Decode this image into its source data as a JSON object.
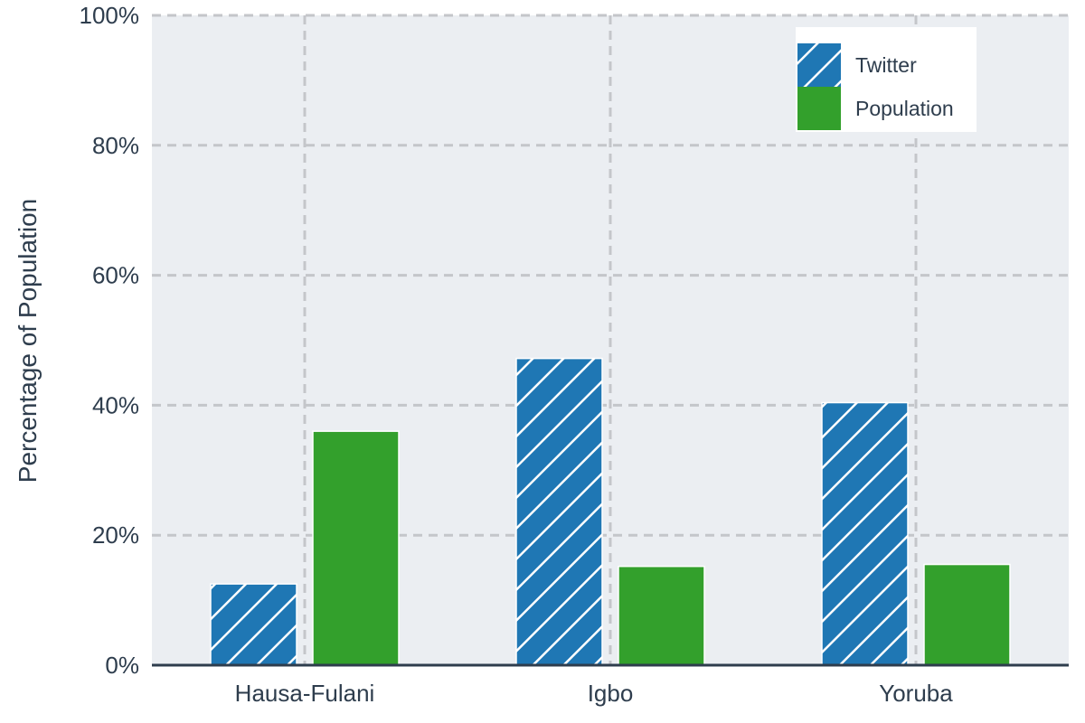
{
  "chart_data": {
    "type": "bar",
    "title": "",
    "xlabel": "",
    "ylabel": "Percentage of Population",
    "ylim": [
      0,
      100
    ],
    "yticks": [
      0,
      20,
      40,
      60,
      80,
      100
    ],
    "ytick_labels": [
      "0%",
      "20%",
      "40%",
      "60%",
      "80%",
      "100%"
    ],
    "categories": [
      "Hausa-Fulani",
      "Igbo",
      "Yoruba"
    ],
    "series": [
      {
        "name": "Twitter",
        "values": [
          12.5,
          47.2,
          40.4
        ],
        "color": "#1f77b4",
        "hatch": "diagonal"
      },
      {
        "name": "Population",
        "values": [
          36.0,
          15.2,
          15.5
        ],
        "color": "#33a02c",
        "hatch": "none"
      }
    ],
    "grid": true,
    "legend": "top-right",
    "plot_background": "#ebeef2",
    "grid_color": "#c4c6ca",
    "axis_color": "#2e3d4d"
  }
}
